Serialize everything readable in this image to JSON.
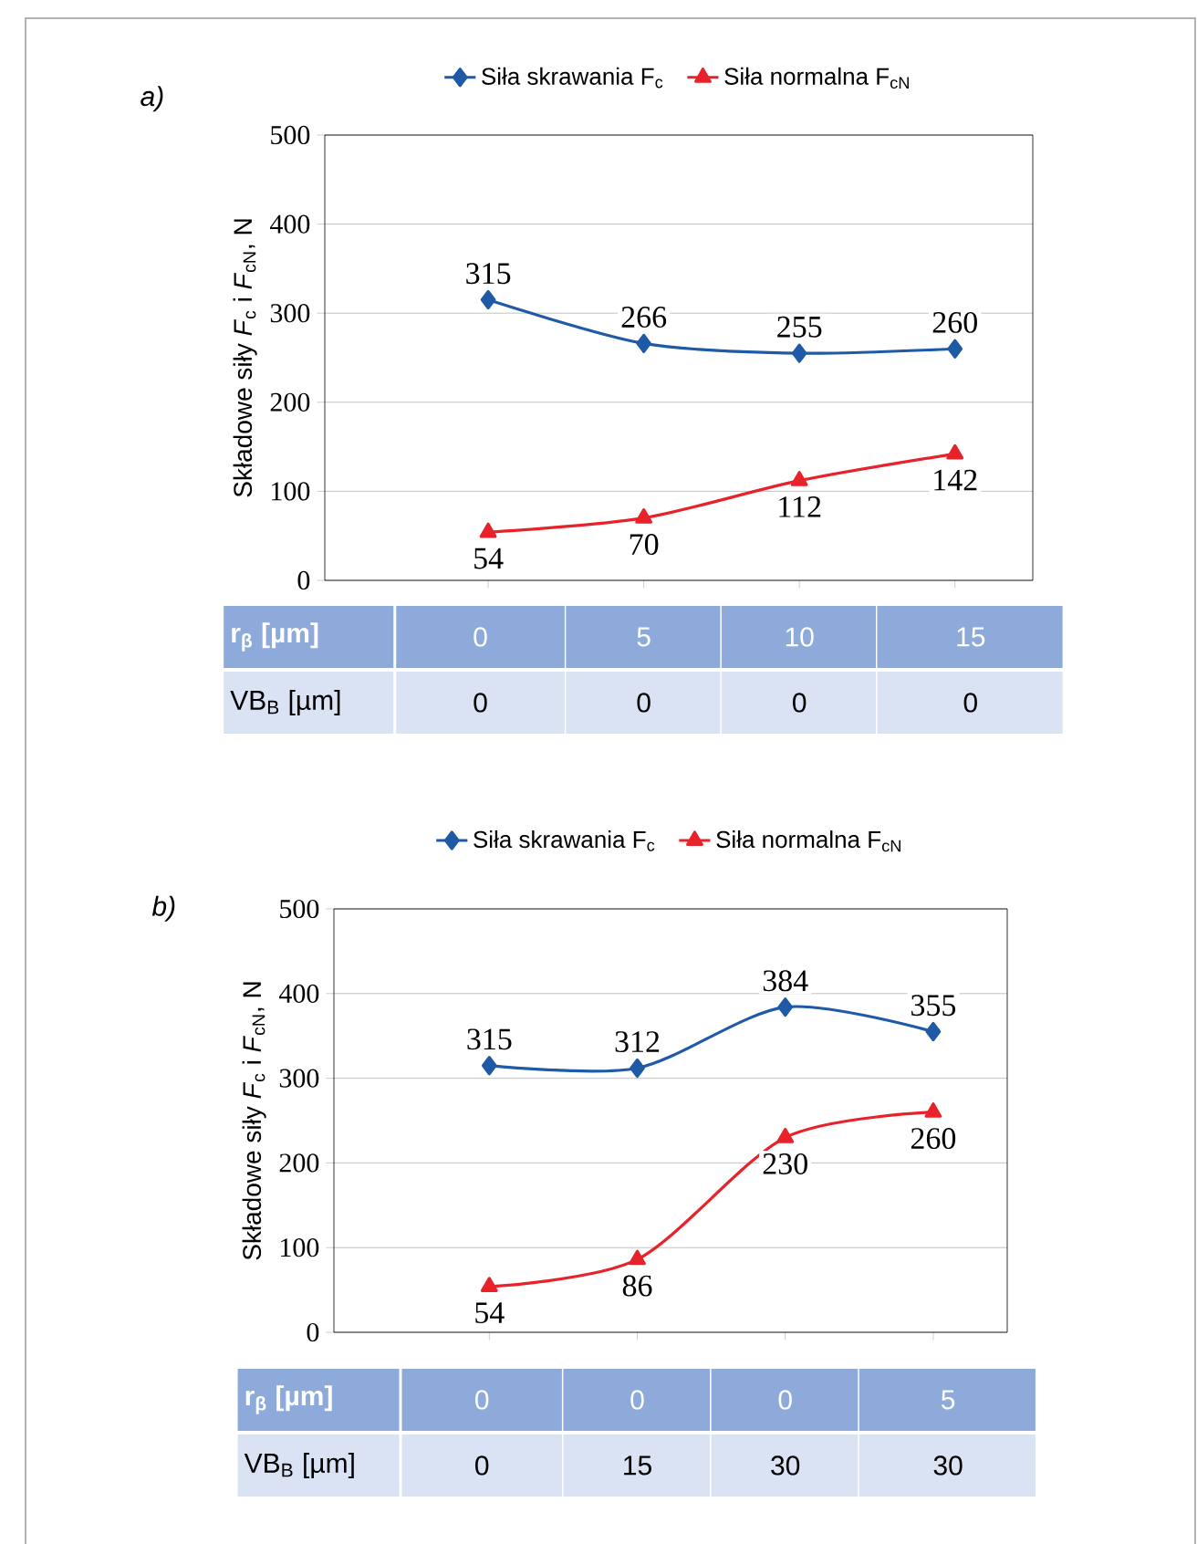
{
  "chart_data": [
    {
      "type": "line",
      "title": "a)",
      "xlabel": "r$_{β}$ [µm]",
      "ylabel": "Składowe siły *F*$_{c}$ i *F*$_{cN}$, N",
      "categories": [
        "0",
        "5",
        "10",
        "15"
      ],
      "series": [
        {
          "name": "Siła skrawania F$_{c}$",
          "color": "#1f5aa6",
          "marker": "diamond",
          "values": [
            315,
            266,
            255,
            260
          ]
        },
        {
          "name": "Siła normalna  F$_{cN}$",
          "color": "#e8222a",
          "marker": "triangle",
          "values": [
            54,
            70,
            112,
            142
          ]
        }
      ],
      "ylim": [
        0,
        500
      ],
      "yticks": [
        0,
        100,
        200,
        300,
        400,
        500
      ],
      "grid": "y",
      "legend": "top",
      "data_labels": true,
      "line_style": "solid",
      "annotations": [
        "VB$_{B}$ [µm]",
        "0",
        "0",
        "0",
        "0"
      ]
    },
    {
      "type": "line",
      "title": "b)",
      "xlabel": "r$_{β}$ [µm]",
      "ylabel": "Składowe siły *F*$_{c}$ i *F*$_{cN}$, N",
      "categories": [
        "0",
        "0",
        "0",
        "5"
      ],
      "series": [
        {
          "name": "Siła skrawania F$_{c}$",
          "color": "#1f5aa6",
          "marker": "diamond",
          "values": [
            315,
            312,
            384,
            355
          ]
        },
        {
          "name": "Siła normalna  F$_{cN}$",
          "color": "#e8222a",
          "marker": "triangle",
          "values": [
            54,
            86,
            230,
            260
          ]
        }
      ],
      "ylim": [
        0,
        500
      ],
      "yticks": [
        0,
        100,
        200,
        300,
        400,
        500
      ],
      "grid": "y",
      "legend": "top",
      "data_labels": true,
      "line_style": "solid",
      "annotations": [
        "VB$_{B}$ [µm]",
        "0",
        "15",
        "30",
        "30"
      ]
    }
  ]
}
